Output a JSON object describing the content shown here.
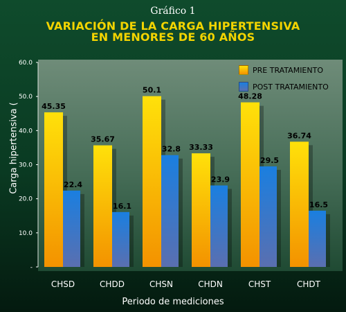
{
  "header": {
    "supertitle": "Gráfico 1",
    "title_line1": "VARIACIÓN DE LA CARGA HIPERTENSIVA",
    "title_line2": "EN MENORES DE 60 AÑOS"
  },
  "colors": {
    "background": "#0f4b2c",
    "title": "#f3d400",
    "pre": "#f7b800",
    "post": "#1f78d1"
  },
  "chart_data": {
    "type": "bar",
    "title": "VARIACIÓN DE LA CARGA HIPERTENSIVA EN MENORES DE 60 AÑOS",
    "xlabel": "Periodo de mediciones",
    "ylabel": "Carga hipertensiva (",
    "categories": [
      "CHSD",
      "CHDD",
      "CHSN",
      "CHDN",
      "CHST",
      "CHDT"
    ],
    "series": [
      {
        "name": "PRE TRATAMIENTO",
        "values": [
          45.35,
          35.67,
          50.1,
          33.33,
          48.28,
          36.74
        ],
        "labels": [
          "45.35",
          "35.67",
          "50.1",
          "33.33",
          "48.28",
          "36.74"
        ]
      },
      {
        "name": "POST TRATAMIENTO",
        "values": [
          22.4,
          16.1,
          32.8,
          23.9,
          29.5,
          16.5
        ],
        "labels": [
          "22.4",
          "16.1",
          "32.8",
          "23.9",
          "29.5",
          "16.5"
        ]
      }
    ],
    "ylim": [
      0,
      60
    ],
    "yticks": [
      0,
      10,
      20,
      30,
      40,
      50,
      60
    ],
    "ytick_labels": [
      "-",
      "10.0",
      "20.0",
      "30.0",
      "40.0",
      "50.0",
      "60.0"
    ],
    "legend_position": "top-right",
    "grid": false
  }
}
